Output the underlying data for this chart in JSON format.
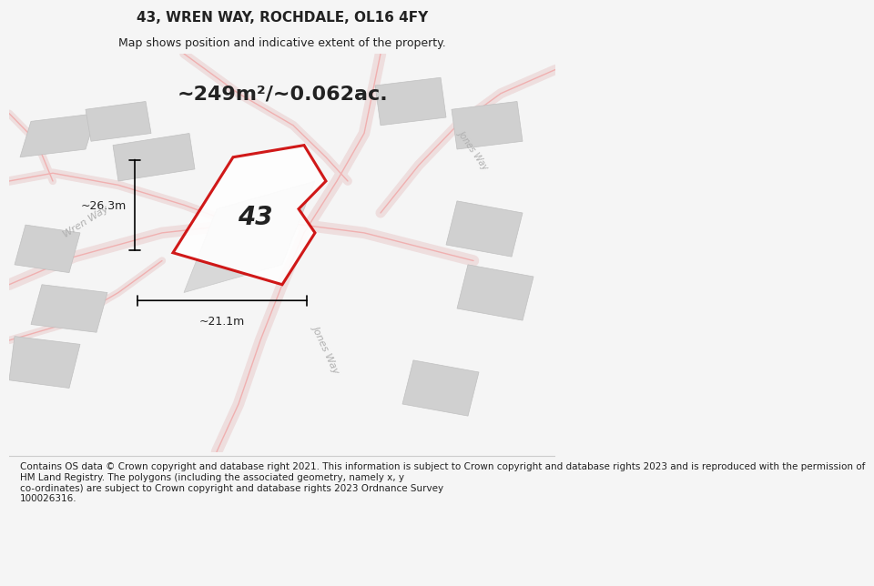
{
  "title": "43, WREN WAY, ROCHDALE, OL16 4FY",
  "subtitle": "Map shows position and indicative extent of the property.",
  "area_text": "~249m²/~0.062ac.",
  "label_43": "43",
  "dim_vertical": "~26.3m",
  "dim_horizontal": "~21.1m",
  "road_label_wren": "Wren Way",
  "road_label_jones1": "Jones Way",
  "road_label_jones2": "Jones Way",
  "footnote": "Contains OS data © Crown copyright and database right 2021. This information is subject to Crown copyright and database rights 2023 and is reproduced with the permission of\nHM Land Registry. The polygons (including the associated geometry, namely x, y\nco-ordinates) are subject to Crown copyright and database rights 2023 Ordnance Survey\n100026316.",
  "bg_color": "#f5f5f5",
  "map_bg": "#ffffff",
  "plot_color_red": "#cc0000",
  "road_color": "#f0b0b0",
  "building_color": "#d0d0d0",
  "text_color": "#222222",
  "road_text_color": "#b0b0b0",
  "footnote_bg": "#ffffff",
  "title_fontsize": 11,
  "subtitle_fontsize": 9,
  "area_fontsize": 16,
  "label_fontsize": 20,
  "dim_fontsize": 9,
  "footnote_fontsize": 7.5,
  "road_label_fontsize": 8,
  "road_label_wren_rot": 32,
  "road_label_jones1_rot": -65,
  "road_label_jones2_rot": -55
}
